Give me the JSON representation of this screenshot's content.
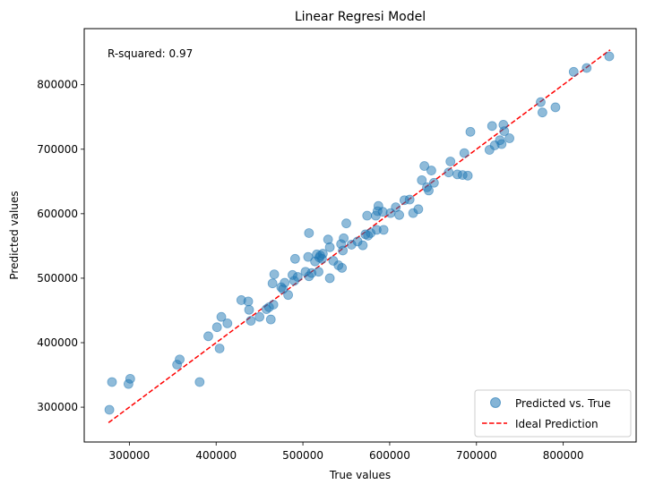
{
  "chart_data": {
    "type": "scatter",
    "title": "Linear Regresi Model",
    "xlabel": "True values",
    "ylabel": "Predicted values",
    "annotation": "R-squared: 0.97",
    "xlim": [
      248000,
      884000
    ],
    "ylim": [
      246000,
      887000
    ],
    "xticks": [
      300000,
      400000,
      500000,
      600000,
      700000,
      800000
    ],
    "yticks": [
      300000,
      400000,
      500000,
      600000,
      700000,
      800000
    ],
    "legend_position": "lower-right",
    "series": [
      {
        "name": "Predicted vs. True",
        "kind": "scatter",
        "color": "#1f77b4",
        "points": [
          [
            277000,
            296000
          ],
          [
            280000,
            339000
          ],
          [
            299000,
            336000
          ],
          [
            301000,
            344000
          ],
          [
            355000,
            366000
          ],
          [
            358000,
            374000
          ],
          [
            381000,
            339000
          ],
          [
            391000,
            410000
          ],
          [
            401000,
            424000
          ],
          [
            404000,
            391000
          ],
          [
            406000,
            440000
          ],
          [
            413000,
            430000
          ],
          [
            429000,
            466000
          ],
          [
            437000,
            464000
          ],
          [
            438000,
            451000
          ],
          [
            440000,
            434000
          ],
          [
            450000,
            440000
          ],
          [
            458000,
            452000
          ],
          [
            461000,
            455000
          ],
          [
            463000,
            436000
          ],
          [
            465000,
            492000
          ],
          [
            466000,
            459000
          ],
          [
            467000,
            506000
          ],
          [
            475000,
            486000
          ],
          [
            477000,
            483000
          ],
          [
            479000,
            493000
          ],
          [
            483000,
            474000
          ],
          [
            488000,
            505000
          ],
          [
            490000,
            496000
          ],
          [
            491000,
            530000
          ],
          [
            494000,
            502000
          ],
          [
            503000,
            510000
          ],
          [
            506000,
            533000
          ],
          [
            507000,
            503000
          ],
          [
            507000,
            570000
          ],
          [
            510000,
            508000
          ],
          [
            514000,
            526000
          ],
          [
            516000,
            537000
          ],
          [
            518000,
            510000
          ],
          [
            519000,
            532000
          ],
          [
            520000,
            535000
          ],
          [
            522000,
            530000
          ],
          [
            523000,
            538000
          ],
          [
            529000,
            560000
          ],
          [
            531000,
            500000
          ],
          [
            531000,
            548000
          ],
          [
            535000,
            527000
          ],
          [
            541000,
            520000
          ],
          [
            544000,
            553000
          ],
          [
            545000,
            516000
          ],
          [
            546000,
            543000
          ],
          [
            547000,
            562000
          ],
          [
            550000,
            585000
          ],
          [
            556000,
            552000
          ],
          [
            563000,
            557000
          ],
          [
            569000,
            551000
          ],
          [
            572000,
            568000
          ],
          [
            574000,
            597000
          ],
          [
            575000,
            566000
          ],
          [
            578000,
            570000
          ],
          [
            584000,
            597000
          ],
          [
            585000,
            575000
          ],
          [
            586000,
            604000
          ],
          [
            587000,
            612000
          ],
          [
            592000,
            603000
          ],
          [
            593000,
            575000
          ],
          [
            601000,
            601000
          ],
          [
            607000,
            610000
          ],
          [
            611000,
            598000
          ],
          [
            617000,
            621000
          ],
          [
            623000,
            622000
          ],
          [
            627000,
            601000
          ],
          [
            633000,
            607000
          ],
          [
            637000,
            652000
          ],
          [
            640000,
            674000
          ],
          [
            643000,
            641000
          ],
          [
            645000,
            636000
          ],
          [
            648000,
            667000
          ],
          [
            651000,
            648000
          ],
          [
            668000,
            664000
          ],
          [
            670000,
            681000
          ],
          [
            678000,
            661000
          ],
          [
            684000,
            660000
          ],
          [
            686000,
            694000
          ],
          [
            690000,
            659000
          ],
          [
            693000,
            727000
          ],
          [
            715000,
            699000
          ],
          [
            718000,
            736000
          ],
          [
            721000,
            706000
          ],
          [
            727000,
            714000
          ],
          [
            729000,
            708000
          ],
          [
            731000,
            738000
          ],
          [
            732000,
            728000
          ],
          [
            738000,
            717000
          ],
          [
            774000,
            773000
          ],
          [
            776000,
            757000
          ],
          [
            791000,
            765000
          ],
          [
            812000,
            820000
          ],
          [
            827000,
            826000
          ],
          [
            853000,
            844000
          ]
        ]
      },
      {
        "name": "Ideal Prediction",
        "kind": "line",
        "style": "dashed",
        "color": "#ff0000",
        "points": [
          [
            276000,
            276000
          ],
          [
            854000,
            854000
          ]
        ]
      }
    ]
  }
}
